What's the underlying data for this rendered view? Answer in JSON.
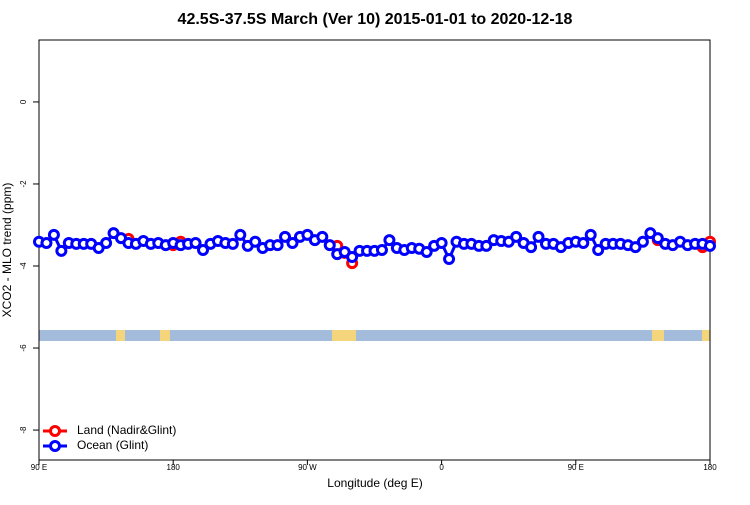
{
  "chart_data": {
    "type": "line",
    "title": "42.5S-37.5S March (Ver 10)   2015-01-01 to 2020-12-18",
    "x_label": "Longitude (deg E)",
    "y_label": "XCO2 - MLO trend (ppm)",
    "x": [
      90,
      95,
      100,
      105,
      110,
      115,
      120,
      125,
      130,
      135,
      140,
      145,
      150,
      155,
      160,
      165,
      170,
      175,
      180,
      185,
      190,
      195,
      200,
      205,
      210,
      215,
      220,
      225,
      230,
      235,
      240,
      245,
      250,
      255,
      260,
      265,
      270,
      275,
      280,
      285,
      290,
      295,
      300,
      305,
      310,
      315,
      320,
      325,
      330,
      335,
      340,
      345,
      350,
      355,
      360,
      365,
      370,
      375,
      380,
      385,
      390,
      395,
      400,
      405,
      410,
      415,
      420,
      425,
      430,
      435,
      440,
      445,
      450,
      455,
      460,
      465,
      470,
      475,
      480,
      485,
      490,
      495,
      500,
      505,
      510,
      515,
      520,
      525,
      530,
      535,
      540
    ],
    "series": [
      {
        "name": "Land (Nadir&Glint)",
        "color": "#ff0000",
        "values": [
          null,
          null,
          null,
          null,
          null,
          null,
          null,
          null,
          null,
          null,
          null,
          null,
          -3.34,
          null,
          null,
          null,
          null,
          null,
          -3.49,
          -3.41,
          null,
          null,
          null,
          null,
          null,
          null,
          null,
          null,
          null,
          null,
          null,
          null,
          null,
          null,
          null,
          null,
          null,
          null,
          null,
          null,
          -3.51,
          -3.68,
          -3.93,
          null,
          null,
          null,
          null,
          null,
          null,
          null,
          null,
          null,
          null,
          null,
          null,
          null,
          null,
          null,
          null,
          null,
          null,
          null,
          null,
          null,
          null,
          null,
          null,
          null,
          null,
          null,
          null,
          null,
          null,
          null,
          null,
          null,
          null,
          null,
          null,
          null,
          null,
          null,
          null,
          -3.37,
          null,
          null,
          null,
          null,
          null,
          -3.54,
          -3.41
        ]
      },
      {
        "name": "Ocean (Glint)",
        "color": "#0000ff",
        "values": [
          -3.41,
          -3.44,
          -3.24,
          -3.63,
          -3.44,
          -3.46,
          -3.46,
          -3.46,
          -3.56,
          -3.44,
          -3.2,
          -3.32,
          -3.44,
          -3.46,
          -3.39,
          -3.46,
          -3.44,
          -3.49,
          -3.44,
          -3.49,
          -3.46,
          -3.44,
          -3.61,
          -3.46,
          -3.39,
          -3.44,
          -3.46,
          -3.24,
          -3.51,
          -3.41,
          -3.56,
          -3.49,
          -3.49,
          -3.29,
          -3.44,
          -3.29,
          -3.24,
          -3.37,
          -3.29,
          -3.49,
          -3.71,
          -3.66,
          -3.78,
          -3.63,
          -3.63,
          -3.63,
          -3.61,
          -3.37,
          -3.56,
          -3.61,
          -3.56,
          -3.58,
          -3.66,
          -3.51,
          -3.44,
          -3.83,
          -3.41,
          -3.46,
          -3.46,
          -3.51,
          -3.51,
          -3.37,
          -3.39,
          -3.41,
          -3.29,
          -3.44,
          -3.54,
          -3.29,
          -3.46,
          -3.46,
          -3.54,
          -3.44,
          -3.41,
          -3.44,
          -3.24,
          -3.61,
          -3.46,
          -3.46,
          -3.46,
          -3.49,
          -3.54,
          -3.41,
          -3.2,
          -3.32,
          -3.46,
          -3.49,
          -3.41,
          -3.49,
          -3.46,
          -3.46,
          -3.51
        ]
      }
    ],
    "xlim": [
      90,
      540
    ],
    "xticks": [
      {
        "value": 90,
        "label": "90 E"
      },
      180,
      {
        "value": 270,
        "label": "90 W"
      },
      {
        "value": 360,
        "label": "0"
      },
      {
        "value": 450,
        "label": "90 E"
      },
      {
        "value": 540,
        "label": "180"
      }
    ],
    "ylim": [
      -8.73,
      1.51
    ],
    "yticks": [
      0,
      -2,
      -4,
      -6,
      -8
    ],
    "legend": "bottom-left"
  }
}
